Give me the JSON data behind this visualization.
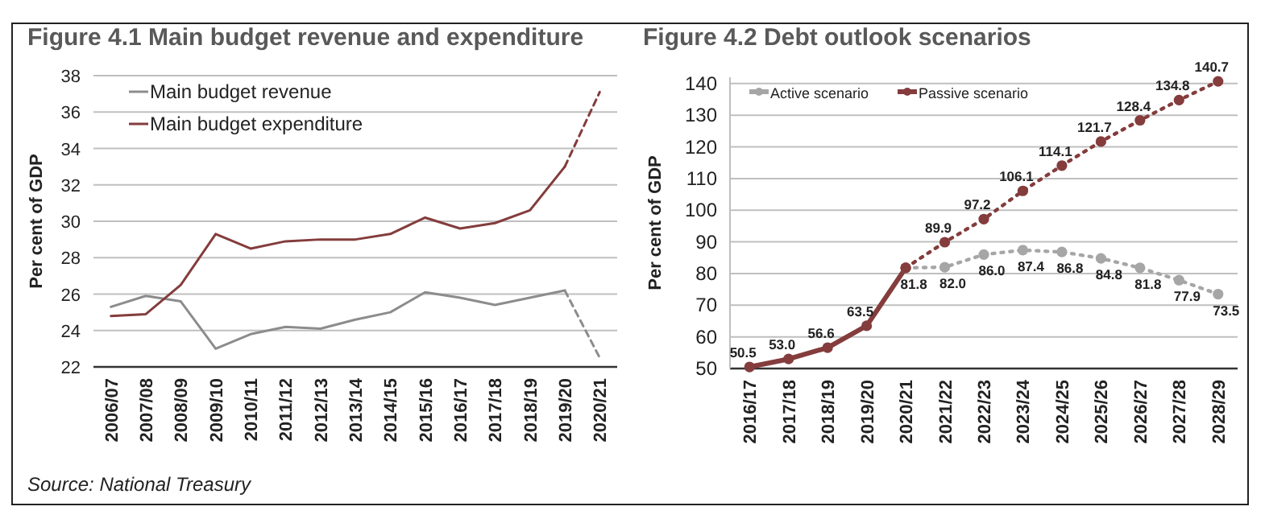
{
  "chart_data": [
    {
      "type": "line",
      "title": "Figure 4.1 Main budget revenue and expenditure",
      "ylabel": "Per cent of GDP",
      "categories": [
        "2006/07",
        "2007/08",
        "2008/09",
        "2009/10",
        "2010/11",
        "2011/12",
        "2012/13",
        "2013/14",
        "2014/15",
        "2015/16",
        "2016/17",
        "2017/18",
        "2018/19",
        "2019/20",
        "2020/21"
      ],
      "series": [
        {
          "name": "Main budget revenue",
          "color": "#8c8c8c",
          "line_style": "solid",
          "values": [
            25.3,
            25.9,
            25.6,
            23.0,
            23.8,
            24.2,
            24.1,
            24.6,
            25.0,
            26.1,
            25.8,
            25.4,
            25.8,
            26.2,
            null
          ]
        },
        {
          "name": "Main budget expenditure",
          "color": "#843c3c",
          "line_style": "solid",
          "values": [
            24.8,
            24.9,
            26.5,
            29.3,
            28.5,
            28.9,
            29.0,
            29.0,
            29.3,
            30.2,
            29.6,
            29.9,
            30.6,
            33.0,
            null
          ]
        },
        {
          "color": "#8c8c8c",
          "line_style": "dashed",
          "values": [
            null,
            null,
            null,
            null,
            null,
            null,
            null,
            null,
            null,
            null,
            null,
            null,
            null,
            26.2,
            22.5
          ]
        },
        {
          "color": "#843c3c",
          "line_style": "dashed",
          "values": [
            null,
            null,
            null,
            null,
            null,
            null,
            null,
            null,
            null,
            null,
            null,
            null,
            null,
            33.0,
            37.1
          ]
        }
      ],
      "ylim": [
        22,
        38
      ],
      "yticks": [
        22,
        24,
        26,
        28,
        30,
        32,
        34,
        36,
        38
      ],
      "grid": "y",
      "legend": "top left",
      "annotations": [
        "Source: National Treasury"
      ]
    },
    {
      "type": "line",
      "title": "Figure 4.2 Debt outlook scenarios",
      "ylabel": "Per cent of GDP",
      "categories": [
        "2016/17",
        "2017/18",
        "2018/19",
        "2019/20",
        "2020/21",
        "2021/22",
        "2022/23",
        "2023/24",
        "2024/25",
        "2025/26",
        "2026/27",
        "2027/28",
        "2028/29"
      ],
      "series": [
        {
          "color": "#843c3c",
          "line_style": "solid",
          "values": [
            50.5,
            53.0,
            56.6,
            63.5,
            81.8,
            null,
            null,
            null,
            null,
            null,
            null,
            null,
            null
          ],
          "value_labels": [
            "50.5",
            "53.0",
            "56.6",
            "63.5",
            null,
            null,
            null,
            null,
            null,
            null,
            null,
            null,
            null
          ]
        },
        {
          "name": "Active scenario",
          "color": "#a6a6a6",
          "line_style": "dotted",
          "values": [
            null,
            null,
            null,
            null,
            81.8,
            82.0,
            86.0,
            87.4,
            86.8,
            84.8,
            81.8,
            77.9,
            73.5
          ],
          "value_labels": [
            null,
            null,
            null,
            null,
            "81.8",
            "82.0",
            "86.0",
            "87.4",
            "86.8",
            "84.8",
            "81.8",
            "77.9",
            "73.5"
          ]
        },
        {
          "name": "Passive scenario",
          "color": "#843c3c",
          "line_style": "dotted",
          "values": [
            null,
            null,
            null,
            null,
            81.8,
            89.9,
            97.2,
            106.1,
            114.1,
            121.7,
            128.4,
            134.8,
            140.7
          ],
          "value_labels": [
            null,
            null,
            null,
            null,
            null,
            "89.9",
            "97.2",
            "106.1",
            "114.1",
            "121.7",
            "128.4",
            "134.8",
            "140.7"
          ]
        }
      ],
      "ylim": [
        50,
        142
      ],
      "yticks": [
        50,
        60,
        70,
        80,
        90,
        100,
        110,
        120,
        130,
        140
      ],
      "grid": "y",
      "legend": "top left",
      "marker": "circle"
    }
  ]
}
